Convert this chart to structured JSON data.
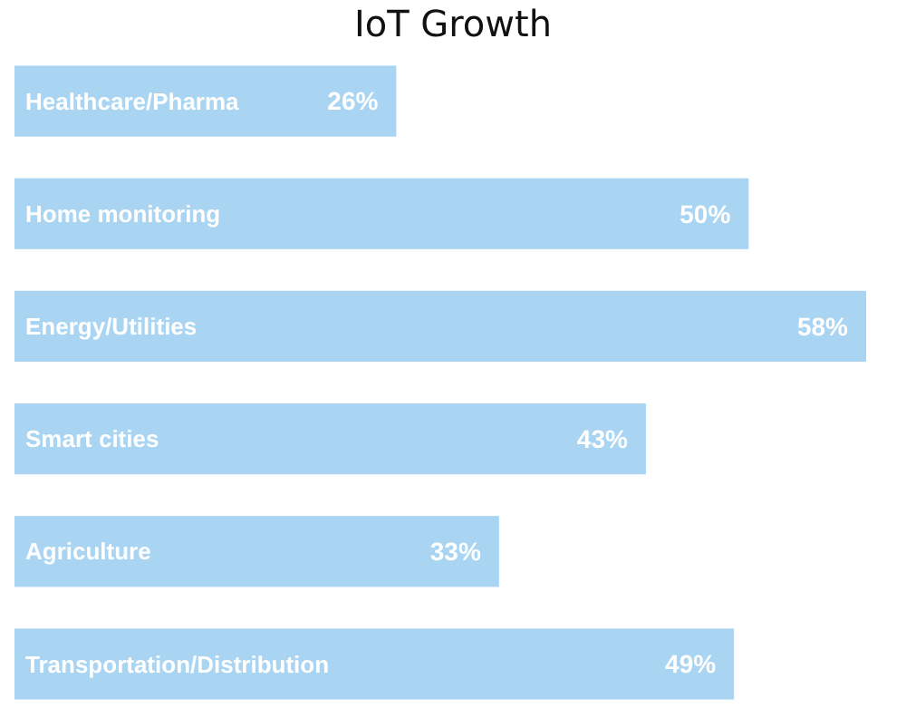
{
  "chart_data": {
    "type": "bar",
    "orientation": "horizontal",
    "title": "IoT Growth",
    "categories": [
      "Healthcare/Pharma",
      "Home monitoring",
      "Energy/Utilities",
      "Smart cities",
      "Agriculture",
      "Transportation/Distribution"
    ],
    "values": [
      26,
      50,
      58,
      43,
      33,
      49
    ],
    "value_labels": [
      "26%",
      "50%",
      "58%",
      "43%",
      "33%",
      "49%"
    ],
    "color": "#a9d5f3",
    "data_labels": true
  }
}
